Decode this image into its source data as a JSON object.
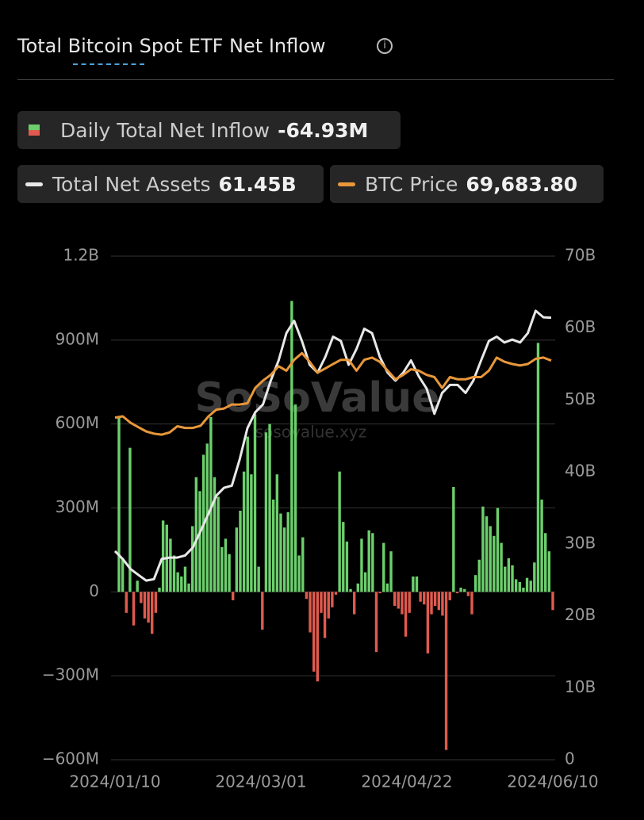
{
  "chart_data": {
    "type": "bar-line",
    "title": "Total Bitcoin Spot ETF Net Inflow",
    "watermark": {
      "name": "SoSoValue",
      "url": "sosovalue.xyz"
    },
    "x_labels": [
      "2024/01/10",
      "2024/03/01",
      "2024/04/22",
      "2024/06/10"
    ],
    "ylim": [
      -600,
      1200
    ],
    "yticks": [
      {
        "value": -600,
        "label": "−600M"
      },
      {
        "value": -300,
        "label": "−300M"
      },
      0,
      {
        "value": 300,
        "label": "300M"
      },
      {
        "value": 600,
        "label": "600M"
      },
      {
        "value": 900,
        "label": "900M"
      },
      {
        "value": 1200,
        "label": "1.2B"
      }
    ],
    "y2lim": [
      0,
      70
    ],
    "y2ticks": [
      0,
      {
        "value": 10,
        "label": "10B"
      },
      {
        "value": 20,
        "label": "20B"
      },
      {
        "value": 30,
        "label": "30B"
      },
      {
        "value": 40,
        "label": "40B"
      },
      {
        "value": 50,
        "label": "50B"
      },
      {
        "value": 60,
        "label": "60B"
      },
      {
        "value": 70,
        "label": "70B"
      }
    ],
    "y3lim": [
      -92000,
      112000
    ],
    "grid": true,
    "series": [
      {
        "name": "Daily Total Net Inflow",
        "latest": "-64.93M",
        "kind": "bar",
        "color": "#6ccf6c",
        "negative_color": "#e05a4e",
        "values": [
          625,
          120,
          -75,
          515,
          -120,
          40,
          -40,
          -95,
          -110,
          -150,
          -75,
          15,
          255,
          240,
          190,
          130,
          70,
          55,
          90,
          30,
          235,
          410,
          360,
          490,
          530,
          625,
          410,
          340,
          160,
          190,
          135,
          -30,
          230,
          290,
          430,
          555,
          420,
          635,
          90,
          -135,
          570,
          600,
          330,
          420,
          280,
          230,
          285,
          1040,
          670,
          130,
          195,
          -25,
          -145,
          -285,
          -320,
          -75,
          -165,
          -95,
          -55,
          -10,
          430,
          250,
          180,
          10,
          -80,
          30,
          190,
          70,
          220,
          210,
          -215,
          -5,
          175,
          30,
          145,
          -50,
          -60,
          -80,
          -160,
          -75,
          55,
          55,
          -35,
          -45,
          -220,
          -80,
          -50,
          -65,
          -85,
          -565,
          -30,
          375,
          -5,
          15,
          10,
          -15,
          -80,
          60,
          115,
          305,
          270,
          235,
          200,
          300,
          175,
          90,
          120,
          95,
          45,
          35,
          15,
          50,
          40,
          105,
          890,
          330,
          210,
          145,
          -65
        ]
      },
      {
        "name": "Total Net Assets",
        "latest": "61.45B",
        "kind": "line",
        "axis": "y2",
        "color": "#e8e8e8",
        "values": [
          29.0,
          27.9,
          26.5,
          25.7,
          24.9,
          25.1,
          27.9,
          28.1,
          28.1,
          28.4,
          29.5,
          31.8,
          34.2,
          36.7,
          37.8,
          38.1,
          41.7,
          46.1,
          48.3,
          49.4,
          52.7,
          55.5,
          59.3,
          61.0,
          58.2,
          54.9,
          53.8,
          56.0,
          58.8,
          58.2,
          54.9,
          57.1,
          59.9,
          59.3,
          56.0,
          53.8,
          52.7,
          53.8,
          55.5,
          53.3,
          51.6,
          48.1,
          51.0,
          52.1,
          52.1,
          51.0,
          52.7,
          55.5,
          58.2,
          58.8,
          58.0,
          58.4,
          58.0,
          59.3,
          62.4,
          61.5,
          61.45
        ]
      },
      {
        "name": "BTC Price",
        "latest": "69,683.80",
        "kind": "line",
        "axis": "y3",
        "color": "#e8973a",
        "values": [
          46600,
          47100,
          44500,
          42700,
          41000,
          40100,
          39700,
          40600,
          43100,
          42400,
          42400,
          43300,
          47100,
          49800,
          50300,
          51900,
          51900,
          52400,
          58600,
          61600,
          63900,
          67400,
          65600,
          70000,
          72700,
          69200,
          64800,
          66500,
          68300,
          70000,
          70000,
          65600,
          70000,
          70900,
          69200,
          65600,
          62100,
          63900,
          66200,
          65600,
          63900,
          63000,
          58600,
          63000,
          62100,
          62100,
          63000,
          63000,
          65600,
          70900,
          69200,
          68300,
          67700,
          68300,
          70400,
          70900,
          69683.8
        ]
      }
    ]
  }
}
